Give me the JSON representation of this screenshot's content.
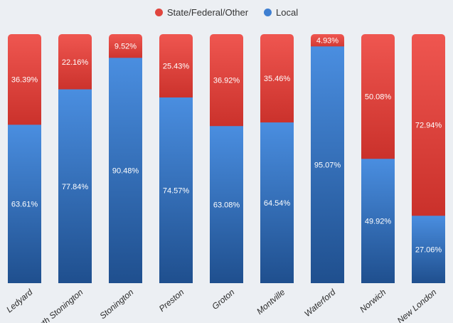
{
  "chart_data": {
    "type": "bar",
    "stacked": true,
    "percent": true,
    "categories": [
      "Ledyard",
      "North Stonington",
      "Stonington",
      "Preston",
      "Groton",
      "Montville",
      "Waterford",
      "Norwich",
      "New London"
    ],
    "series": [
      {
        "name": "Local",
        "color": "#3f7fd1",
        "values": [
          63.61,
          77.84,
          90.48,
          74.57,
          63.08,
          64.54,
          95.07,
          49.92,
          27.06
        ],
        "labels": [
          "63.61%",
          "77.84%",
          "90.48%",
          "74.57%",
          "63.08%",
          "64.54%",
          "95.07%",
          "49.92%",
          "27.06%"
        ]
      },
      {
        "name": "State/Federal/Other",
        "color": "#e0453e",
        "values": [
          36.39,
          22.16,
          9.52,
          25.43,
          36.92,
          35.46,
          4.93,
          50.08,
          72.94
        ],
        "labels": [
          "36.39%",
          "22.16%",
          "9.52%",
          "25.43%",
          "36.92%",
          "35.46%",
          "4.93%",
          "50.08%",
          "72.94%"
        ]
      }
    ],
    "ylim": [
      0,
      100
    ],
    "grid": false,
    "legend": {
      "position": "top-center",
      "order": [
        "State/Federal/Other",
        "Local"
      ]
    }
  }
}
